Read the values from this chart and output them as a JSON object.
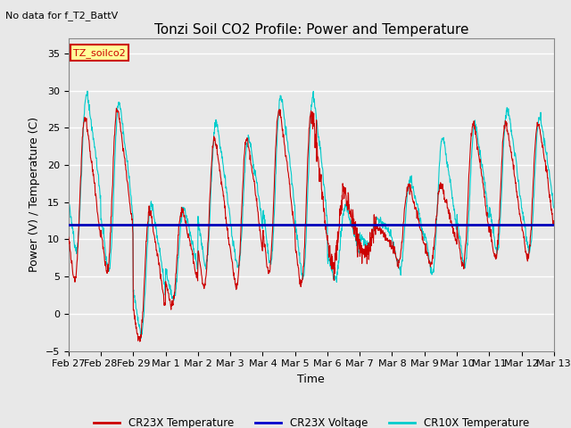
{
  "title": "Tonzi Soil CO2 Profile: Power and Temperature",
  "subtitle": "No data for f_T2_BattV",
  "xlabel": "Time",
  "ylabel": "Power (V) / Temperature (C)",
  "ylim": [
    -5,
    37
  ],
  "yticks": [
    -5,
    0,
    5,
    10,
    15,
    20,
    25,
    30,
    35
  ],
  "xtick_labels": [
    "Feb 27",
    "Feb 28",
    "Feb 29",
    "Mar 1",
    "Mar 2",
    "Mar 3",
    "Mar 4",
    "Mar 5",
    "Mar 6",
    "Mar 7",
    "Mar 8",
    "Mar 9",
    "Mar 10",
    "Mar 11",
    "Mar 12",
    "Mar 13"
  ],
  "legend_labels": [
    "CR23X Temperature",
    "CR23X Voltage",
    "CR10X Temperature"
  ],
  "legend_colors": [
    "#cc0000",
    "#0000cc",
    "#00cccc"
  ],
  "voltage_level": 12.0,
  "annotation_box": "TZ_soilco2",
  "annotation_color": "#cc0000",
  "annotation_bg": "#ffff99",
  "figsize": [
    6.4,
    4.8
  ],
  "dpi": 100,
  "title_fontsize": 11,
  "label_fontsize": 9,
  "tick_fontsize": 8
}
